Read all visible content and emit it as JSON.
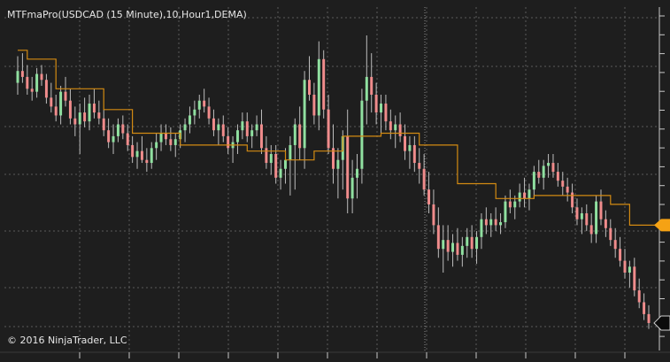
{
  "chart_title": "MTFmaPro(USDCAD (15 Minute),10,Hour1,DEMA)",
  "copyright": "© 2016 NinjaTrader, LLC",
  "colors": {
    "background": "#1e1e1e",
    "grid": "#5a5a5a",
    "axis": "#c8c8c8",
    "up": "#90e0a0",
    "down": "#f08c8c",
    "wick": "#bdbdbd",
    "ma_line": "#d38a12",
    "ma_marker": "#f5a214",
    "price_marker": "#0b0b0b",
    "price_marker_border": "#cfcfcf"
  },
  "chart_data": {
    "type": "line",
    "instrument": "USDCAD",
    "interval": "15 Minute",
    "indicator": "MTFmaPro",
    "indicator_params": "10, Hour1, DEMA",
    "grid": true,
    "ylim": [
      0,
      100
    ],
    "candles": [
      [
        84,
        93,
        80,
        88
      ],
      [
        88,
        94,
        84,
        86
      ],
      [
        86,
        90,
        80,
        82
      ],
      [
        82,
        86,
        78,
        81
      ],
      [
        81,
        89,
        79,
        87
      ],
      [
        87,
        90,
        83,
        85
      ],
      [
        85,
        87,
        77,
        79
      ],
      [
        79,
        84,
        74,
        76
      ],
      [
        76,
        80,
        71,
        73
      ],
      [
        73,
        83,
        70,
        81
      ],
      [
        81,
        86,
        76,
        78
      ],
      [
        78,
        82,
        70,
        72
      ],
      [
        72,
        76,
        66,
        70
      ],
      [
        70,
        77,
        60,
        74
      ],
      [
        74,
        79,
        69,
        71
      ],
      [
        71,
        80,
        68,
        77
      ],
      [
        77,
        82,
        72,
        74
      ],
      [
        74,
        78,
        70,
        72
      ],
      [
        72,
        75,
        66,
        68
      ],
      [
        68,
        72,
        62,
        64
      ],
      [
        64,
        70,
        60,
        66
      ],
      [
        66,
        72,
        64,
        70
      ],
      [
        70,
        73,
        65,
        67
      ],
      [
        67,
        70,
        61,
        63
      ],
      [
        63,
        66,
        57,
        59
      ],
      [
        59,
        64,
        55,
        61
      ],
      [
        61,
        66,
        57,
        58
      ],
      [
        58,
        62,
        54,
        57
      ],
      [
        57,
        64,
        55,
        62
      ],
      [
        62,
        67,
        58,
        64
      ],
      [
        64,
        70,
        61,
        67
      ],
      [
        67,
        70,
        63,
        65
      ],
      [
        65,
        69,
        61,
        63
      ],
      [
        63,
        67,
        59,
        65
      ],
      [
        65,
        70,
        62,
        68
      ],
      [
        68,
        72,
        64,
        70
      ],
      [
        70,
        76,
        67,
        73
      ],
      [
        73,
        78,
        70,
        75
      ],
      [
        75,
        80,
        72,
        78
      ],
      [
        78,
        82,
        74,
        76
      ],
      [
        76,
        79,
        70,
        72
      ],
      [
        72,
        75,
        66,
        68
      ],
      [
        68,
        72,
        63,
        70
      ],
      [
        70,
        73,
        64,
        66
      ],
      [
        66,
        69,
        60,
        62
      ],
      [
        62,
        66,
        57,
        64
      ],
      [
        64,
        70,
        60,
        68
      ],
      [
        68,
        74,
        65,
        71
      ],
      [
        71,
        74,
        64,
        66
      ],
      [
        66,
        70,
        62,
        68
      ],
      [
        68,
        73,
        66,
        70
      ],
      [
        70,
        75,
        60,
        62
      ],
      [
        62,
        66,
        55,
        57
      ],
      [
        57,
        63,
        53,
        60
      ],
      [
        60,
        63,
        50,
        52
      ],
      [
        52,
        58,
        48,
        55
      ],
      [
        55,
        62,
        50,
        58
      ],
      [
        58,
        66,
        46,
        63
      ],
      [
        63,
        72,
        48,
        70
      ],
      [
        70,
        76,
        58,
        62
      ],
      [
        62,
        88,
        55,
        85
      ],
      [
        85,
        93,
        78,
        80
      ],
      [
        80,
        84,
        70,
        73
      ],
      [
        73,
        98,
        68,
        92
      ],
      [
        92,
        95,
        72,
        75
      ],
      [
        75,
        80,
        60,
        62
      ],
      [
        62,
        70,
        50,
        55
      ],
      [
        55,
        62,
        45,
        58
      ],
      [
        58,
        68,
        48,
        66
      ],
      [
        66,
        75,
        40,
        45
      ],
      [
        45,
        58,
        40,
        52
      ],
      [
        52,
        60,
        45,
        55
      ],
      [
        55,
        82,
        50,
        78
      ],
      [
        78,
        100,
        70,
        86
      ],
      [
        86,
        94,
        74,
        80
      ],
      [
        80,
        84,
        70,
        74
      ],
      [
        74,
        80,
        66,
        77
      ],
      [
        77,
        80,
        68,
        71
      ],
      [
        71,
        75,
        65,
        68
      ],
      [
        68,
        73,
        62,
        70
      ],
      [
        70,
        74,
        64,
        66
      ],
      [
        66,
        70,
        58,
        61
      ],
      [
        61,
        66,
        55,
        63
      ],
      [
        63,
        66,
        54,
        57
      ],
      [
        57,
        62,
        50,
        55
      ],
      [
        55,
        60,
        46,
        48
      ],
      [
        48,
        54,
        40,
        43
      ],
      [
        43,
        48,
        33,
        36
      ],
      [
        36,
        42,
        25,
        28
      ],
      [
        28,
        36,
        20,
        31
      ],
      [
        31,
        36,
        24,
        27
      ],
      [
        27,
        33,
        22,
        30
      ],
      [
        30,
        35,
        24,
        26
      ],
      [
        26,
        32,
        22,
        29
      ],
      [
        29,
        35,
        25,
        32
      ],
      [
        32,
        36,
        25,
        28
      ],
      [
        28,
        34,
        23,
        32
      ],
      [
        32,
        40,
        28,
        38
      ],
      [
        38,
        42,
        33,
        36
      ],
      [
        36,
        40,
        32,
        38
      ],
      [
        38,
        42,
        34,
        36
      ],
      [
        36,
        40,
        33,
        37
      ],
      [
        37,
        46,
        35,
        44
      ],
      [
        44,
        48,
        40,
        42
      ],
      [
        42,
        46,
        38,
        44
      ],
      [
        44,
        50,
        42,
        47
      ],
      [
        47,
        52,
        42,
        45
      ],
      [
        45,
        50,
        41,
        48
      ],
      [
        48,
        56,
        45,
        54
      ],
      [
        54,
        58,
        50,
        52
      ],
      [
        52,
        58,
        48,
        56
      ],
      [
        56,
        60,
        52,
        57
      ],
      [
        57,
        60,
        52,
        54
      ],
      [
        54,
        57,
        49,
        51
      ],
      [
        51,
        54,
        46,
        49
      ],
      [
        49,
        52,
        44,
        47
      ],
      [
        47,
        50,
        40,
        42
      ],
      [
        42,
        45,
        36,
        38
      ],
      [
        38,
        42,
        33,
        40
      ],
      [
        40,
        43,
        34,
        36
      ],
      [
        36,
        40,
        30,
        33
      ],
      [
        33,
        46,
        30,
        44
      ],
      [
        44,
        48,
        36,
        38
      ],
      [
        38,
        41,
        32,
        35
      ],
      [
        35,
        38,
        29,
        31
      ],
      [
        31,
        35,
        25,
        28
      ],
      [
        28,
        32,
        22,
        24
      ],
      [
        24,
        28,
        18,
        20
      ],
      [
        20,
        24,
        15,
        22
      ],
      [
        22,
        25,
        12,
        14
      ],
      [
        14,
        18,
        8,
        10
      ],
      [
        10,
        13,
        4,
        6
      ],
      [
        6,
        9,
        1,
        3
      ]
    ],
    "ma_steps": [
      [
        0,
        95
      ],
      [
        2,
        92
      ],
      [
        8,
        82
      ],
      [
        18,
        75
      ],
      [
        24,
        67
      ],
      [
        34,
        63
      ],
      [
        42,
        63
      ],
      [
        48,
        61
      ],
      [
        56,
        58
      ],
      [
        62,
        61
      ],
      [
        68,
        66
      ],
      [
        76,
        67
      ],
      [
        84,
        63
      ],
      [
        92,
        50
      ],
      [
        100,
        45
      ],
      [
        108,
        46
      ],
      [
        116,
        46
      ],
      [
        124,
        43
      ],
      [
        128,
        36
      ],
      [
        136,
        36
      ]
    ],
    "ma_last_index": 136,
    "current_ma": 36,
    "current_price": 3
  }
}
